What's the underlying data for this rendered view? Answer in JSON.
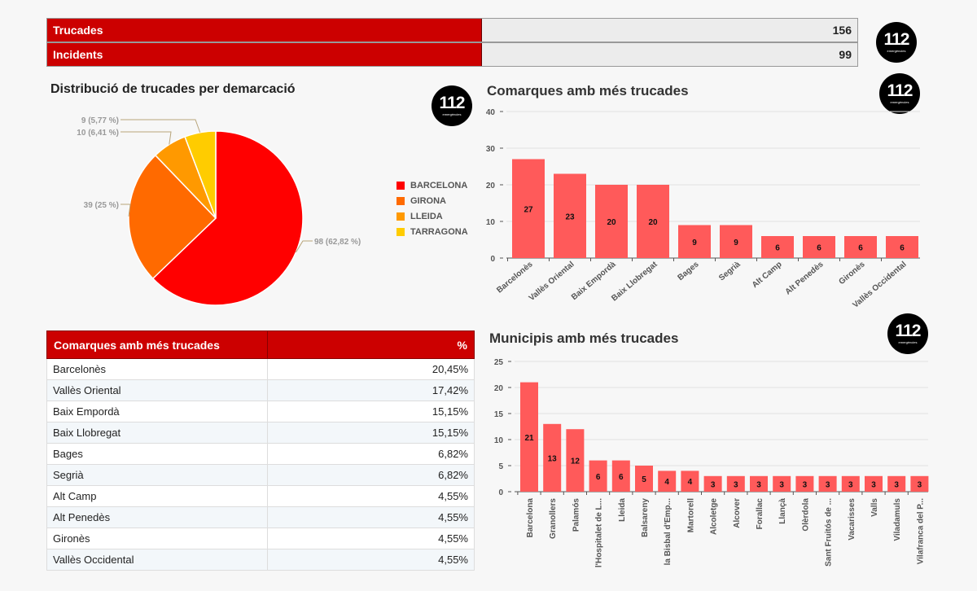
{
  "kpis": [
    {
      "label": "Trucades",
      "value": "156"
    },
    {
      "label": "Incidents",
      "value": "99"
    }
  ],
  "logo": {
    "number": "112",
    "subtitle": "emergències"
  },
  "pie_title": "Distribució de trucades per demarcació",
  "bar1_title": "Comarques amb més trucades",
  "bar2_title": "Municipis amb més trucades",
  "table": {
    "headers": [
      "Comarques amb més trucades",
      "%"
    ],
    "rows": [
      [
        "Barcelonès",
        "20,45%"
      ],
      [
        "Vallès Oriental",
        "17,42%"
      ],
      [
        "Baix Empordà",
        "15,15%"
      ],
      [
        "Baix Llobregat",
        "15,15%"
      ],
      [
        "Bages",
        "6,82%"
      ],
      [
        "Segrià",
        "6,82%"
      ],
      [
        "Alt Camp",
        "4,55%"
      ],
      [
        "Alt Penedès",
        "4,55%"
      ],
      [
        "Gironès",
        "4,55%"
      ],
      [
        "Vallès Occidental",
        "4,55%"
      ]
    ]
  },
  "chart_data": [
    {
      "type": "pie",
      "title": "Distribució de trucades per demarcació",
      "legend": "right",
      "categories": [
        "BARCELONA",
        "GIRONA",
        "LLEIDA",
        "TARRAGONA"
      ],
      "values": [
        98,
        39,
        10,
        9
      ],
      "labels": [
        "98 (62,82 %)",
        "39 (25 %)",
        "10 (6,41 %)",
        "9 (5,77 %)"
      ],
      "colors": [
        "#ff0000",
        "#ff6a00",
        "#ff9900",
        "#ffcc00"
      ]
    },
    {
      "type": "bar",
      "title": "Comarques amb més trucades",
      "ylim": [
        0,
        40
      ],
      "yticks": [
        0,
        10,
        20,
        30,
        40
      ],
      "color": "#ff5a5a",
      "categories": [
        "Barcelonès",
        "Vallès Oriental",
        "Baix Empordà",
        "Baix Llobregat",
        "Bages",
        "Segrià",
        "Alt Camp",
        "Alt Penedès",
        "Gironès",
        "Vallès Occidental"
      ],
      "values": [
        27,
        23,
        20,
        20,
        9,
        9,
        6,
        6,
        6,
        6
      ]
    },
    {
      "type": "bar",
      "title": "Municipis amb més trucades",
      "ylim": [
        0,
        25
      ],
      "yticks": [
        0,
        5,
        10,
        15,
        20,
        25
      ],
      "color": "#ff5a5a",
      "categories": [
        "Barcelona",
        "Granollers",
        "Palamós",
        "l'Hospitalet de L...",
        "Lleida",
        "Balsareny",
        "la Bisbal d'Emp...",
        "Martorell",
        "Alcoletge",
        "Alcover",
        "Forallac",
        "Llançà",
        "Olèrdola",
        "Sant Fruitós de ...",
        "Vacarisses",
        "Valls",
        "Viladamuls",
        "Vilafranca del P..."
      ],
      "values": [
        21,
        13,
        12,
        6,
        6,
        5,
        4,
        4,
        3,
        3,
        3,
        3,
        3,
        3,
        3,
        3,
        3,
        3
      ]
    }
  ]
}
